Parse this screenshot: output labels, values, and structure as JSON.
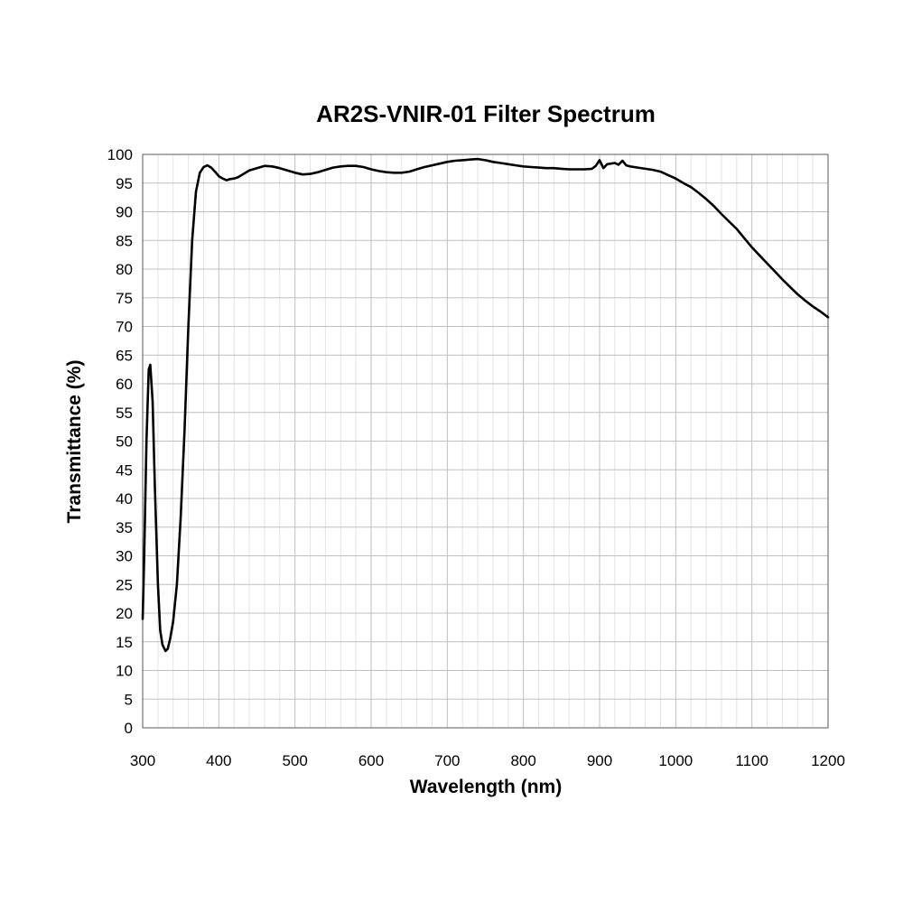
{
  "chart_data": {
    "type": "line",
    "title": "AR2S-VNIR-01 Filter Spectrum",
    "xlabel": "Wavelength (nm)",
    "ylabel": "Transmittance (%)",
    "xlim": [
      300,
      1200
    ],
    "ylim": [
      0,
      100
    ],
    "xticks": [
      300,
      400,
      500,
      600,
      700,
      800,
      900,
      1000,
      1100,
      1200
    ],
    "yticks": [
      0,
      5,
      10,
      15,
      20,
      25,
      30,
      35,
      40,
      45,
      50,
      55,
      60,
      65,
      70,
      75,
      80,
      85,
      90,
      95,
      100
    ],
    "x_minor_step": 20,
    "grid": true,
    "legend": false,
    "series_color": "#000000",
    "x": [
      300,
      302,
      305,
      308,
      310,
      313,
      316,
      320,
      323,
      326,
      330,
      333,
      336,
      340,
      345,
      350,
      355,
      360,
      365,
      370,
      375,
      380,
      385,
      390,
      395,
      400,
      405,
      410,
      415,
      420,
      425,
      430,
      440,
      450,
      460,
      470,
      480,
      490,
      500,
      510,
      520,
      530,
      540,
      550,
      560,
      570,
      580,
      590,
      600,
      610,
      620,
      630,
      640,
      650,
      660,
      670,
      680,
      690,
      700,
      710,
      720,
      730,
      740,
      750,
      760,
      770,
      780,
      790,
      800,
      810,
      820,
      830,
      840,
      850,
      860,
      870,
      880,
      890,
      895,
      900,
      905,
      910,
      920,
      925,
      930,
      935,
      940,
      950,
      960,
      970,
      980,
      990,
      1000,
      1010,
      1020,
      1030,
      1040,
      1050,
      1060,
      1070,
      1080,
      1090,
      1100,
      1110,
      1120,
      1130,
      1140,
      1150,
      1160,
      1170,
      1180,
      1190,
      1200
    ],
    "y": [
      19,
      30,
      50,
      62.5,
      63.3,
      57,
      42,
      25,
      17,
      14.5,
      13.4,
      13.8,
      15.5,
      18.5,
      25,
      37,
      52,
      70,
      85,
      93.5,
      96.8,
      97.8,
      98.1,
      97.7,
      97,
      96.2,
      95.8,
      95.5,
      95.7,
      95.8,
      96,
      96.4,
      97.2,
      97.6,
      98,
      97.9,
      97.6,
      97.2,
      96.8,
      96.5,
      96.6,
      96.9,
      97.3,
      97.7,
      97.9,
      98,
      98,
      97.8,
      97.4,
      97.1,
      96.9,
      96.8,
      96.8,
      97,
      97.4,
      97.8,
      98.1,
      98.4,
      98.7,
      98.9,
      99,
      99.1,
      99.2,
      99,
      98.7,
      98.5,
      98.3,
      98.1,
      97.9,
      97.8,
      97.7,
      97.6,
      97.6,
      97.5,
      97.4,
      97.4,
      97.4,
      97.5,
      98,
      99,
      97.6,
      98.3,
      98.5,
      98.2,
      98.9,
      98.1,
      97.9,
      97.7,
      97.5,
      97.3,
      97,
      96.4,
      95.8,
      95,
      94.3,
      93.3,
      92.2,
      91,
      89.6,
      88.3,
      87,
      85.4,
      83.8,
      82.4,
      81,
      79.6,
      78.2,
      76.9,
      75.6,
      74.5,
      73.5,
      72.6,
      71.6
    ]
  }
}
